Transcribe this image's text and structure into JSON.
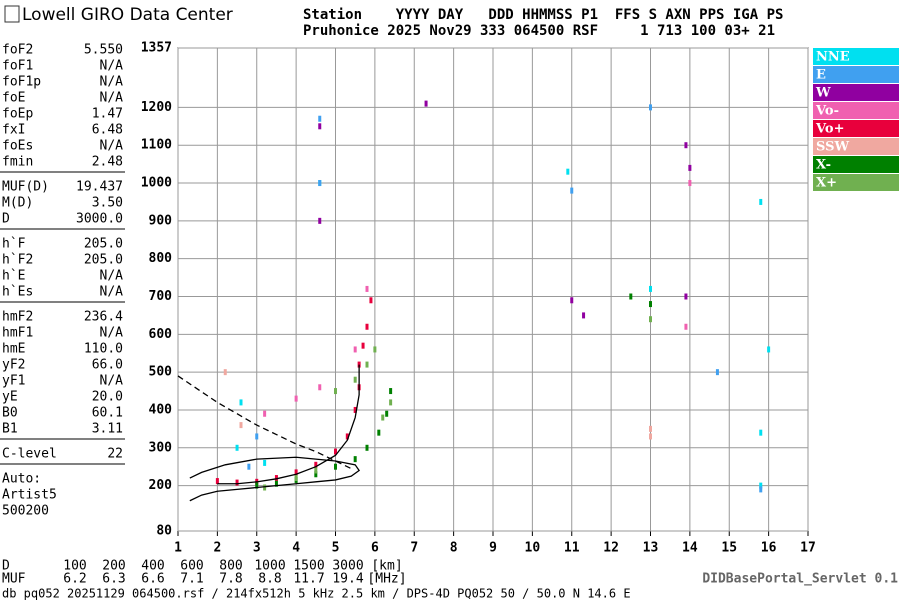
{
  "header": {
    "logo": "Lowell GIRO Data Center",
    "station_line_1": "Station    YYYY DAY   DDD HHMMSS P1  FFS S AXN PPS IGA PS",
    "station_line_2": "Pruhonice 2025 Nov29 333 064500 RSF     1 713 100 03+ 21"
  },
  "parameters": [
    [
      [
        "foF2",
        "5.550"
      ],
      [
        "foF1",
        "N/A"
      ],
      [
        "foF1p",
        "N/A"
      ],
      [
        "foE",
        "N/A"
      ],
      [
        "foEp",
        "1.47"
      ],
      [
        "fxI",
        "6.48"
      ],
      [
        "foEs",
        "N/A"
      ],
      [
        "fmin",
        "2.48"
      ]
    ],
    [
      [
        "MUF(D)",
        "19.437"
      ],
      [
        "M(D)",
        "3.50"
      ],
      [
        "D",
        "3000.0"
      ]
    ],
    [
      [
        "h`F",
        "205.0"
      ],
      [
        "h`F2",
        "205.0"
      ],
      [
        "h`E",
        "N/A"
      ],
      [
        "h`Es",
        "N/A"
      ]
    ],
    [
      [
        "hmF2",
        "236.4"
      ],
      [
        "hmF1",
        "N/A"
      ],
      [
        "hmE",
        "110.0"
      ],
      [
        "yF2",
        "66.0"
      ],
      [
        "yF1",
        "N/A"
      ],
      [
        "yE",
        "20.0"
      ],
      [
        "B0",
        "60.1"
      ],
      [
        "B1",
        "3.11"
      ]
    ],
    [
      [
        "C-level",
        "22"
      ]
    ]
  ],
  "autoscaling": [
    "Auto:",
    "Artist5",
    "500200"
  ],
  "chart_data": {
    "type": "scatter",
    "xlim": [
      1,
      17
    ],
    "xticks": [
      1,
      2,
      3,
      4,
      5,
      6,
      7,
      8,
      9,
      10,
      11,
      12,
      13,
      14,
      15,
      16,
      17
    ],
    "ylim": [
      80,
      1357
    ],
    "yticks": [
      80,
      200,
      300,
      400,
      500,
      600,
      700,
      800,
      900,
      1000,
      1100,
      1200,
      1357
    ],
    "grid": true,
    "series": [
      {
        "name": "NNE",
        "color": "#00e0f0",
        "x": [
          2.5,
          2.6,
          3.2,
          4.6,
          10.9,
          13.0,
          15.8,
          15.8,
          15.8,
          16.0
        ],
        "values": [
          300,
          420,
          260,
          1000,
          1030,
          720,
          200,
          340,
          950,
          560
        ]
      },
      {
        "name": "E",
        "color": "#40a0f0",
        "x": [
          2.8,
          3.0,
          4.6,
          4.6,
          11.0,
          13.0,
          14.7,
          15.8
        ],
        "values": [
          250,
          330,
          1170,
          1000,
          980,
          1200,
          500,
          190
        ]
      },
      {
        "name": "W",
        "color": "#9000a0",
        "x": [
          4.6,
          4.6,
          7.3,
          11.0,
          11.3,
          13.9,
          13.9,
          14.0
        ],
        "values": [
          1150,
          900,
          1210,
          690,
          650,
          1100,
          700,
          1040
        ]
      },
      {
        "name": "Vo-",
        "color": "#f060b0",
        "x": [
          3.2,
          4.0,
          4.6,
          5.5,
          5.8,
          13.9,
          14.0
        ],
        "values": [
          390,
          430,
          460,
          560,
          720,
          620,
          1000
        ]
      },
      {
        "name": "Vo+",
        "color": "#e8003c",
        "x": [
          2.0,
          2.5,
          3.0,
          3.5,
          4.0,
          4.5,
          5.0,
          5.3,
          5.5,
          5.6,
          5.6,
          5.7,
          5.8,
          5.9
        ],
        "values": [
          212,
          208,
          210,
          220,
          235,
          255,
          290,
          330,
          400,
          460,
          520,
          570,
          620,
          690
        ]
      },
      {
        "name": "SSW",
        "color": "#f0a8a0",
        "x": [
          2.2,
          2.6,
          13.0,
          13.0
        ],
        "values": [
          500,
          360,
          350,
          330
        ]
      },
      {
        "name": "X-",
        "color": "#008000",
        "x": [
          3.0,
          3.5,
          4.0,
          4.5,
          5.0,
          5.5,
          5.8,
          6.1,
          6.3,
          6.4,
          12.5,
          13.0
        ],
        "values": [
          200,
          205,
          215,
          230,
          250,
          270,
          300,
          340,
          390,
          450,
          700,
          680
        ]
      },
      {
        "name": "X+",
        "color": "#70b050",
        "x": [
          3.2,
          4.0,
          4.5,
          5.0,
          5.5,
          5.8,
          6.0,
          6.2,
          6.4,
          13.0
        ],
        "values": [
          195,
          220,
          240,
          450,
          480,
          520,
          560,
          380,
          420,
          640
        ]
      }
    ],
    "lines": [
      {
        "color": "#000000",
        "x": [
          1.3,
          1.6,
          2.0,
          2.5,
          3.0,
          3.5,
          4.0,
          4.5,
          5.0,
          5.4,
          5.6,
          5.5,
          5.0,
          4.0,
          3.0,
          2.2,
          1.6,
          1.3
        ],
        "values": [
          160,
          175,
          185,
          190,
          195,
          200,
          205,
          210,
          215,
          225,
          240,
          255,
          265,
          275,
          270,
          255,
          235,
          220
        ]
      },
      {
        "color": "#000000",
        "x": [
          2.0,
          2.5,
          3.0,
          3.5,
          4.0,
          4.5,
          5.0,
          5.3,
          5.5,
          5.6,
          5.6
        ],
        "values": [
          205,
          205,
          210,
          218,
          230,
          250,
          280,
          320,
          380,
          440,
          520
        ]
      },
      {
        "color": "#000000",
        "dashed": true,
        "x": [
          1.0,
          1.5,
          2.0,
          2.5,
          3.0,
          3.5,
          4.0,
          4.5,
          5.0,
          5.4
        ],
        "values": [
          490,
          455,
          420,
          390,
          360,
          335,
          310,
          290,
          265,
          245
        ]
      }
    ],
    "legend": "right"
  },
  "distance_table": {
    "d_label": "D",
    "d_values": [
      "100",
      "200",
      "400",
      "600",
      "800",
      "1000",
      "1500",
      "3000",
      "[km]"
    ],
    "muf_label": "MUF",
    "muf_values": [
      "6.2",
      "6.3",
      "6.6",
      "7.1",
      "7.8",
      "8.8",
      "11.7",
      "19.4",
      "[MHz]"
    ]
  },
  "footer": "db pq052 20251129 064500.rsf / 214fx512h 5 kHz 2.5 km / DPS-4D PQ052 50 / 50.0 N 14.6 E",
  "servlet": "DIDBasePortal_Servlet 0.1"
}
